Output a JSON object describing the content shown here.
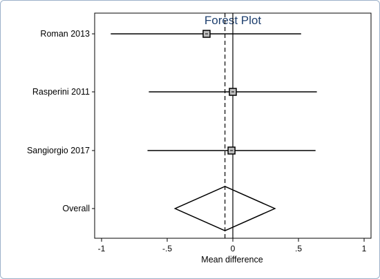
{
  "chart_data": {
    "type": "forest",
    "title": "Forest Plot",
    "xlabel": "Mean difference",
    "ylabel": "",
    "xlim": [
      -1,
      1
    ],
    "xticks": [
      -1,
      -0.5,
      0,
      0.5,
      1
    ],
    "xtick_labels": [
      "-1",
      "-.5",
      "0",
      ".5",
      "1"
    ],
    "grid": false,
    "studies": [
      {
        "label": "Roman 2013",
        "estimate": -0.2,
        "ci_low": -0.93,
        "ci_high": 0.52
      },
      {
        "label": "Rasperini 2011",
        "estimate": 0.0,
        "ci_low": -0.64,
        "ci_high": 0.64
      },
      {
        "label": "Sangiorgio 2017",
        "estimate": -0.01,
        "ci_low": -0.65,
        "ci_high": 0.63
      }
    ],
    "overall": {
      "label": "Overall",
      "estimate": -0.06,
      "ci_low": -0.44,
      "ci_high": 0.32
    },
    "null_line": 0,
    "colors": {
      "title": "#1d3f6e",
      "frame": "#9bb0c9",
      "marks": "#000000",
      "box_fill": "#bdbdbd"
    }
  }
}
